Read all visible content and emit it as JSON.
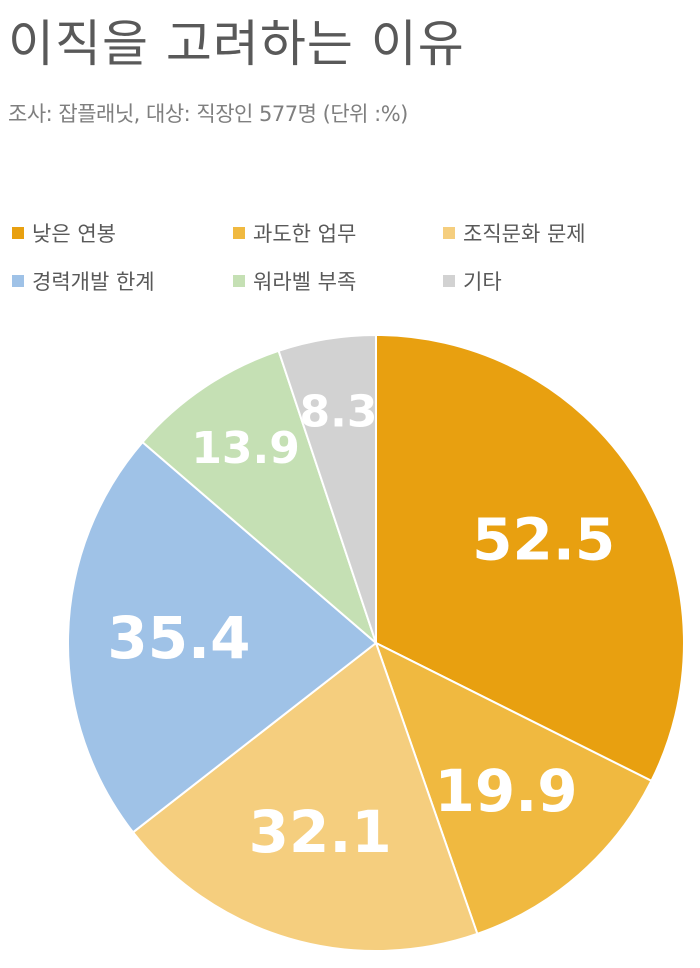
{
  "title": "이직을 고려하는 이유",
  "subtitle": "조사: 잡플래닛, 대상: 직장인 577명 (단위 :%)",
  "chart_data": {
    "type": "pie",
    "categories": [
      "낮은 연봉",
      "과도한 업무",
      "조직문화 문제",
      "경력개발 한계",
      "워라벨 부족",
      "기타"
    ],
    "values": [
      52.5,
      19.9,
      32.1,
      35.4,
      13.9,
      8.3
    ],
    "colors": [
      "#E8A010",
      "#F0B940",
      "#F5CE7E",
      "#9FC2E7",
      "#C5E0B4",
      "#D2D2D2"
    ],
    "start": "12 o'clock",
    "direction": "clockwise",
    "legend": "top"
  },
  "legend": [
    {
      "label": "낮은 연봉",
      "color": "#E8A010"
    },
    {
      "label": "과도한 업무",
      "color": "#F0B940"
    },
    {
      "label": "조직문화 문제",
      "color": "#F5CE7E"
    },
    {
      "label": "경력개발 한계",
      "color": "#9FC2E7"
    },
    {
      "label": "워라벨 부족",
      "color": "#C5E0B4"
    },
    {
      "label": "기타",
      "color": "#D2D2D2"
    }
  ]
}
